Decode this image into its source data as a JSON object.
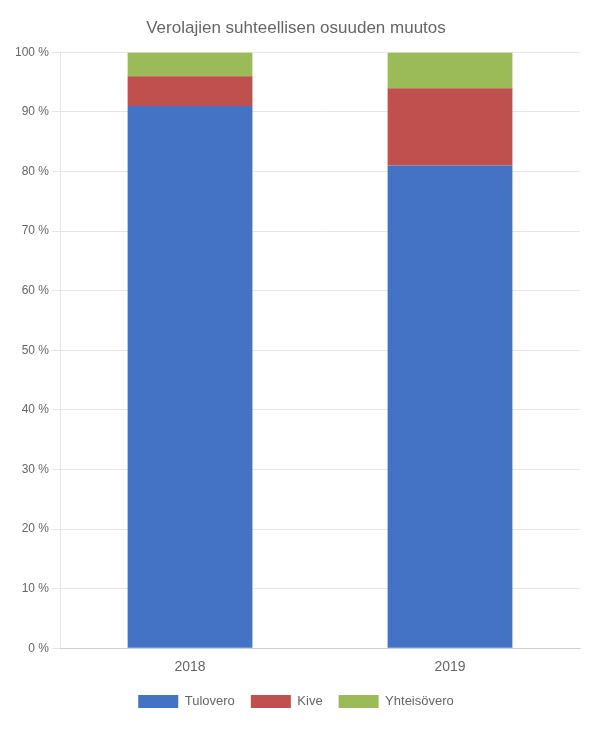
{
  "chart_data": {
    "type": "bar",
    "title": "Verolajien suhteellisen osuuden muutos",
    "categories": [
      "2018",
      "2019"
    ],
    "series": [
      {
        "name": "Tulovero",
        "values": [
          91.0,
          81.0
        ],
        "color": "#4472C4"
      },
      {
        "name": "Kive",
        "values": [
          5.0,
          13.0
        ],
        "color": "#C0504D"
      },
      {
        "name": "Yhteisövero",
        "values": [
          4.0,
          6.0
        ],
        "color": "#9BBB59"
      }
    ],
    "stacked": true,
    "ylim": [
      0,
      100
    ],
    "yticks": [
      {
        "value": 0,
        "label": "0 %"
      },
      {
        "value": 10,
        "label": "10 %"
      },
      {
        "value": 20,
        "label": "20 %"
      },
      {
        "value": 30,
        "label": "30 %"
      },
      {
        "value": 40,
        "label": "40 %"
      },
      {
        "value": 50,
        "label": "50 %"
      },
      {
        "value": 60,
        "label": "60 %"
      },
      {
        "value": 70,
        "label": "70 %"
      },
      {
        "value": 80,
        "label": "80 %"
      },
      {
        "value": 90,
        "label": "90 %"
      },
      {
        "value": 100,
        "label": "100 %"
      }
    ],
    "grid": true,
    "legend": "bottom"
  }
}
